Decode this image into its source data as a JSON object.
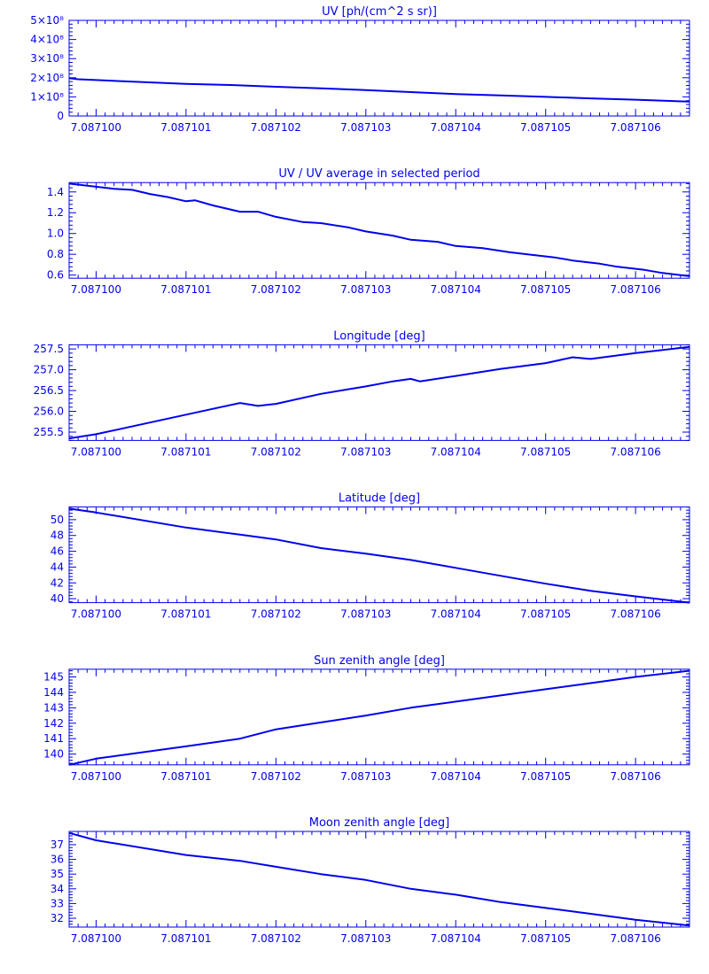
{
  "page": {
    "color": "#0000ee",
    "background": "#ffffff"
  },
  "chart_data": [
    {
      "type": "line",
      "title": "UV [ph/(cm^2 s sr)]",
      "xlim": [
        7.0870997,
        7.0871066
      ],
      "ylim": [
        0,
        500000000
      ],
      "xticks": [
        "7.087100",
        "7.087101",
        "7.087102",
        "7.087103",
        "7.087104",
        "7.087105",
        "7.087106"
      ],
      "xtick_values": [
        7.0871,
        7.087101,
        7.087102,
        7.087103,
        7.087104,
        7.087105,
        7.087106
      ],
      "yticks": [
        "0",
        "1×10⁸",
        "2×10⁸",
        "3×10⁸",
        "4×10⁸",
        "5×10⁸"
      ],
      "ytick_values": [
        0,
        100000000,
        200000000,
        300000000,
        400000000,
        500000000
      ],
      "series": [
        {
          "x": [
            7.0870997,
            7.0870998,
            7.0871,
            7.0871005,
            7.087101,
            7.0871015,
            7.087102,
            7.0871025,
            7.087103,
            7.0871035,
            7.087104,
            7.0871045,
            7.087105,
            7.0871055,
            7.087106,
            7.0871066
          ],
          "y": [
            198000000,
            192000000,
            188000000,
            178000000,
            168000000,
            162000000,
            153000000,
            145000000,
            135000000,
            125000000,
            115000000,
            108000000,
            100000000,
            92000000,
            85000000,
            75000000
          ]
        }
      ]
    },
    {
      "type": "line",
      "title": "UV / UV average in selected period",
      "xlim": [
        7.0870997,
        7.0871066
      ],
      "ylim": [
        0.57,
        1.49
      ],
      "xticks": [
        "7.087100",
        "7.087101",
        "7.087102",
        "7.087103",
        "7.087104",
        "7.087105",
        "7.087106"
      ],
      "xtick_values": [
        7.0871,
        7.087101,
        7.087102,
        7.087103,
        7.087104,
        7.087105,
        7.087106
      ],
      "yticks": [
        "0.6",
        "0.8",
        "1.0",
        "1.2",
        "1.4"
      ],
      "ytick_values": [
        0.6,
        0.8,
        1.0,
        1.2,
        1.4
      ],
      "series": [
        {
          "x": [
            7.0870997,
            7.0870998,
            7.0871,
            7.0871002,
            7.0871004,
            7.0871006,
            7.0871008,
            7.087101,
            7.0871011,
            7.0871013,
            7.0871016,
            7.0871018,
            7.087102,
            7.0871023,
            7.0871025,
            7.0871028,
            7.087103,
            7.0871033,
            7.0871035,
            7.0871038,
            7.087104,
            7.0871043,
            7.0871046,
            7.0871048,
            7.0871051,
            7.0871053,
            7.0871056,
            7.0871058,
            7.0871061,
            7.0871063,
            7.0871066
          ],
          "y": [
            1.48,
            1.47,
            1.45,
            1.43,
            1.42,
            1.38,
            1.35,
            1.31,
            1.32,
            1.27,
            1.21,
            1.21,
            1.16,
            1.11,
            1.1,
            1.06,
            1.02,
            0.98,
            0.94,
            0.92,
            0.88,
            0.86,
            0.82,
            0.8,
            0.77,
            0.74,
            0.71,
            0.68,
            0.65,
            0.62,
            0.59
          ]
        }
      ]
    },
    {
      "type": "line",
      "title": "Longitude [deg]",
      "xlim": [
        7.0870997,
        7.0871066
      ],
      "ylim": [
        255.3,
        257.6
      ],
      "xticks": [
        "7.087100",
        "7.087101",
        "7.087102",
        "7.087103",
        "7.087104",
        "7.087105",
        "7.087106"
      ],
      "xtick_values": [
        7.0871,
        7.087101,
        7.087102,
        7.087103,
        7.087104,
        7.087105,
        7.087106
      ],
      "yticks": [
        "255.5",
        "256.0",
        "256.5",
        "257.0",
        "257.5"
      ],
      "ytick_values": [
        255.5,
        256.0,
        256.5,
        257.0,
        257.5
      ],
      "series": [
        {
          "x": [
            7.0870997,
            7.0871,
            7.087101,
            7.0871016,
            7.0871018,
            7.087102,
            7.0871025,
            7.087103,
            7.0871033,
            7.0871035,
            7.0871036,
            7.087104,
            7.0871045,
            7.087105,
            7.0871053,
            7.0871055,
            7.087106,
            7.0871066
          ],
          "y": [
            255.35,
            255.45,
            255.92,
            256.2,
            256.13,
            256.18,
            256.42,
            256.6,
            256.72,
            256.78,
            256.72,
            256.85,
            257.02,
            257.16,
            257.3,
            257.26,
            257.4,
            257.55
          ]
        }
      ]
    },
    {
      "type": "line",
      "title": "Latitude [deg]",
      "xlim": [
        7.0870997,
        7.0871066
      ],
      "ylim": [
        39.5,
        51.6
      ],
      "xticks": [
        "7.087100",
        "7.087101",
        "7.087102",
        "7.087103",
        "7.087104",
        "7.087105",
        "7.087106"
      ],
      "xtick_values": [
        7.0871,
        7.087101,
        7.087102,
        7.087103,
        7.087104,
        7.087105,
        7.087106
      ],
      "yticks": [
        "40",
        "42",
        "44",
        "46",
        "48",
        "50"
      ],
      "ytick_values": [
        40,
        42,
        44,
        46,
        48,
        50
      ],
      "series": [
        {
          "x": [
            7.0870997,
            7.0871,
            7.087101,
            7.0871016,
            7.087102,
            7.0871025,
            7.087103,
            7.0871035,
            7.087104,
            7.0871045,
            7.087105,
            7.0871055,
            7.087106,
            7.0871066
          ],
          "y": [
            51.4,
            50.9,
            49.0,
            48.1,
            47.5,
            46.4,
            45.7,
            44.9,
            43.9,
            42.9,
            41.9,
            41.0,
            40.3,
            39.5
          ]
        }
      ]
    },
    {
      "type": "line",
      "title": "Sun zenith angle [deg]",
      "xlim": [
        7.0870997,
        7.0871066
      ],
      "ylim": [
        139.3,
        145.5
      ],
      "xticks": [
        "7.087100",
        "7.087101",
        "7.087102",
        "7.087103",
        "7.087104",
        "7.087105",
        "7.087106"
      ],
      "xtick_values": [
        7.0871,
        7.087101,
        7.087102,
        7.087103,
        7.087104,
        7.087105,
        7.087106
      ],
      "yticks": [
        "140",
        "141",
        "142",
        "143",
        "144",
        "145"
      ],
      "ytick_values": [
        140,
        141,
        142,
        143,
        144,
        145
      ],
      "series": [
        {
          "x": [
            7.0870997,
            7.0871,
            7.087101,
            7.0871016,
            7.087102,
            7.0871025,
            7.087103,
            7.0871035,
            7.087104,
            7.0871045,
            7.087105,
            7.0871055,
            7.087106,
            7.0871066
          ],
          "y": [
            139.3,
            139.7,
            140.5,
            141.0,
            141.6,
            142.05,
            142.5,
            143.0,
            143.4,
            143.8,
            144.2,
            144.6,
            145.0,
            145.4
          ]
        }
      ]
    },
    {
      "type": "line",
      "title": "Moon zenith angle [deg]",
      "xlim": [
        7.0870997,
        7.0871066
      ],
      "ylim": [
        31.4,
        37.9
      ],
      "xticks": [
        "7.087100",
        "7.087101",
        "7.087102",
        "7.087103",
        "7.087104",
        "7.087105",
        "7.087106"
      ],
      "xtick_values": [
        7.0871,
        7.087101,
        7.087102,
        7.087103,
        7.087104,
        7.087105,
        7.087106
      ],
      "yticks": [
        "32",
        "33",
        "34",
        "35",
        "36",
        "37"
      ],
      "ytick_values": [
        32,
        33,
        34,
        35,
        36,
        37
      ],
      "series": [
        {
          "x": [
            7.0870997,
            7.0871,
            7.087101,
            7.0871016,
            7.087102,
            7.0871025,
            7.087103,
            7.0871035,
            7.087104,
            7.0871045,
            7.087105,
            7.0871055,
            7.087106,
            7.0871066
          ],
          "y": [
            37.8,
            37.3,
            36.3,
            35.9,
            35.5,
            35.0,
            34.6,
            34.0,
            33.6,
            33.1,
            32.7,
            32.3,
            31.9,
            31.5
          ]
        }
      ]
    }
  ]
}
